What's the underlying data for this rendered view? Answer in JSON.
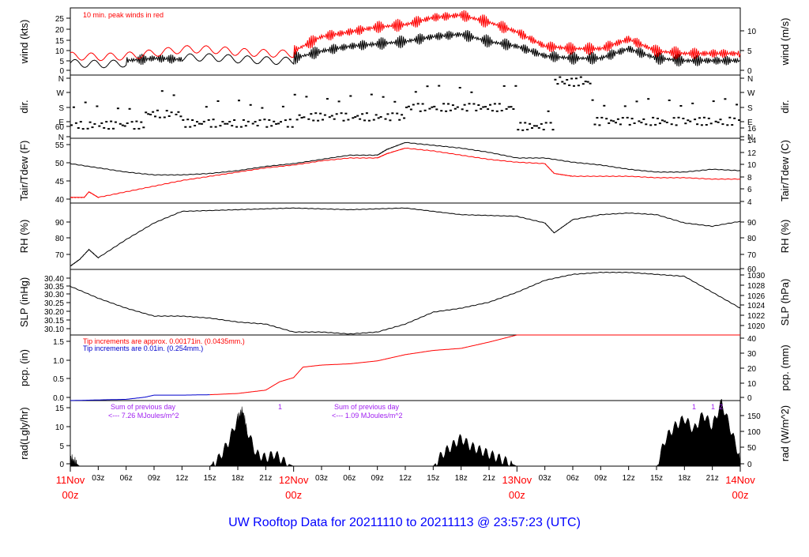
{
  "title": "UW Rooftop Data for 20211110  to  20211113 @ 23:57:23  (UTC)",
  "colors": {
    "primary": "#000000",
    "red": "#ff0000",
    "blue": "#0000cc",
    "purple": "#a020f0",
    "title": "#0000ff"
  },
  "x_axis": {
    "hour_ticks": [
      "03z",
      "06z",
      "09z",
      "12z",
      "15z",
      "18z",
      "21z",
      "03z",
      "06z",
      "09z",
      "12z",
      "15z",
      "18z",
      "21z",
      "03z",
      "06z",
      "09z",
      "12z",
      "15z",
      "18z",
      "21z"
    ],
    "day_labels": [
      {
        "day": "11Nov",
        "hour": "00z"
      },
      {
        "day": "12Nov",
        "hour": "00z"
      },
      {
        "day": "13Nov",
        "hour": "00z"
      },
      {
        "day": "14Nov",
        "hour": "00z"
      }
    ]
  },
  "chart_data": [
    {
      "type": "line",
      "panel": "wind",
      "ylabel_left": "wind (kts)",
      "ylabel_right": "wind (m/s)",
      "ylim": [
        0,
        28
      ],
      "left_ticks": [
        "0",
        "5",
        "10",
        "15",
        "20",
        "25"
      ],
      "right_ticks": [
        "0",
        "5",
        "10"
      ],
      "annotation": "10 min. peak winds in red",
      "series": [
        {
          "color": "#000000",
          "x": [
            0,
            6,
            9,
            12,
            18,
            24,
            27,
            30,
            33,
            36,
            39,
            42,
            45,
            48,
            51,
            54,
            57,
            60,
            63,
            66,
            69,
            72
          ],
          "values": [
            5,
            6,
            7,
            6.5,
            6,
            7,
            10,
            12,
            13,
            14,
            16,
            17,
            14,
            12,
            8,
            7,
            7,
            11,
            7,
            6,
            6,
            6
          ]
        },
        {
          "color": "#ff0000",
          "x": [
            0,
            6,
            12,
            18,
            24,
            27,
            30,
            33,
            36,
            39,
            42,
            45,
            48,
            51,
            54,
            57,
            60,
            63,
            66,
            69,
            72
          ],
          "values": [
            8,
            9,
            10,
            9,
            10,
            16,
            18,
            20,
            21,
            24,
            25,
            22,
            18,
            12,
            11,
            11,
            15,
            10,
            9,
            9,
            9
          ]
        }
      ]
    },
    {
      "type": "scatter",
      "panel": "dir",
      "ylabel_left": "dir.",
      "ylabel_right": "dir.",
      "left_ticks": [
        "N",
        "E",
        "S",
        "W",
        "N"
      ],
      "right_ticks": [
        "N",
        "E",
        "S",
        "W",
        "N"
      ]
    },
    {
      "type": "line",
      "panel": "temp",
      "ylabel_left": "Tair/Tdew (F)",
      "ylabel_right": "Tair/Tdew (C)",
      "ylim": [
        38,
        61
      ],
      "left_ticks": [
        "40",
        "45",
        "50",
        "55",
        "60"
      ],
      "right_ticks": [
        "4",
        "6",
        "8",
        "10",
        "12",
        "14",
        "16"
      ],
      "series": [
        {
          "color": "#000000",
          "x": [
            0,
            3,
            6,
            9,
            12,
            15,
            18,
            21,
            24,
            27,
            30,
            33,
            34,
            36,
            39,
            42,
            45,
            48,
            51,
            54,
            57,
            60,
            63,
            66,
            69,
            72
          ],
          "values": [
            52,
            50.5,
            49,
            48,
            48,
            48.5,
            49.5,
            51,
            52,
            53.5,
            55,
            55,
            57,
            59.5,
            58.5,
            57.5,
            56,
            54,
            54,
            52.5,
            51.5,
            50,
            49,
            49,
            50,
            49.5
          ]
        },
        {
          "color": "#ff0000",
          "x": [
            0,
            1.5,
            2,
            3,
            6,
            9,
            12,
            15,
            18,
            21,
            24,
            27,
            30,
            33,
            34,
            36,
            39,
            42,
            45,
            48,
            51,
            52,
            54,
            57,
            60,
            63,
            66,
            69,
            72
          ],
          "values": [
            40,
            40,
            42,
            40,
            42,
            44,
            46,
            47.5,
            49,
            50.5,
            51.5,
            53,
            54,
            54,
            55.5,
            57.5,
            56.5,
            55,
            53.5,
            52.5,
            52,
            48.5,
            47.5,
            47.5,
            47.5,
            47,
            47,
            46.5,
            46.5
          ]
        }
      ]
    },
    {
      "type": "line",
      "panel": "rh",
      "ylabel_left": "RH (%)",
      "ylabel_right": "RH (%)",
      "ylim": [
        60,
        100
      ],
      "left_ticks": [
        "70",
        "80",
        "90"
      ],
      "right_ticks": [
        "60",
        "70",
        "80",
        "90"
      ],
      "series": [
        {
          "color": "#000000",
          "x": [
            0,
            1,
            2,
            3,
            6,
            9,
            12,
            18,
            24,
            30,
            36,
            42,
            48,
            51,
            52,
            54,
            57,
            60,
            63,
            66,
            69,
            72
          ],
          "values": [
            62,
            66,
            72,
            67,
            78,
            88,
            95,
            96,
            97,
            96,
            97,
            93,
            92,
            88,
            82,
            90,
            93,
            94,
            93,
            88,
            86,
            89
          ]
        }
      ]
    },
    {
      "type": "line",
      "panel": "slp",
      "ylabel_left": "SLP (inHg)",
      "ylabel_right": "SLP (hPa)",
      "ylim": [
        30.085,
        30.415
      ],
      "left_ticks": [
        "30.10",
        "30.15",
        "30.20",
        "30.25",
        "30.30",
        "30.35",
        "30.40"
      ],
      "right_ticks": [
        "1020",
        "1022",
        "1024",
        "1026",
        "1028",
        "1030"
      ],
      "series": [
        {
          "color": "#000000",
          "x": [
            0,
            3,
            6,
            9,
            12,
            15,
            18,
            21,
            24,
            27,
            30,
            33,
            36,
            39,
            42,
            45,
            48,
            51,
            54,
            57,
            60,
            63,
            66,
            69,
            72
          ],
          "values": [
            30.33,
            30.27,
            30.22,
            30.18,
            30.18,
            30.17,
            30.15,
            30.14,
            30.1,
            30.1,
            30.09,
            30.1,
            30.14,
            30.2,
            30.22,
            30.25,
            30.3,
            30.36,
            30.39,
            30.4,
            30.4,
            30.39,
            30.38,
            30.3,
            30.22
          ]
        }
      ]
    },
    {
      "type": "line",
      "panel": "pcp",
      "ylabel_left": "pcp. (in)",
      "ylabel_right": "pcp. (mm)",
      "ylim": [
        0,
        1.57
      ],
      "left_ticks": [
        "0.0",
        "0.5",
        "1.0",
        "1.5"
      ],
      "right_ticks": [
        "0",
        "10",
        "20",
        "30",
        "40"
      ],
      "annotations": [
        "Tip increments are approx. 0.00171in. (0.0435mm.)",
        "Tip increments are 0.01in. (0.254mm.)"
      ],
      "series": [
        {
          "color": "#0000cc",
          "x": [
            0,
            6,
            8,
            9,
            12,
            15
          ],
          "values": [
            0,
            0.03,
            0.08,
            0.13,
            0.13,
            0.14
          ]
        },
        {
          "color": "#ff0000",
          "x": [
            15,
            18,
            21,
            22.5,
            24,
            25,
            27,
            30,
            33,
            36,
            39,
            42,
            45,
            48,
            51,
            54,
            57,
            60,
            63,
            66,
            69,
            72
          ],
          "values": [
            0.14,
            0.17,
            0.25,
            0.45,
            0.55,
            0.8,
            0.85,
            0.88,
            0.95,
            1.1,
            1.2,
            1.25,
            1.4,
            1.57,
            1.57,
            1.57,
            1.57,
            1.57,
            1.57,
            1.57,
            1.57,
            1.57
          ]
        }
      ]
    },
    {
      "type": "area",
      "panel": "rad",
      "ylabel_left": "rad(Lgly/hr)",
      "ylabel_right": "rad (W/m^2)",
      "ylim": [
        0,
        16.5
      ],
      "left_ticks": [
        "0",
        "5",
        "10",
        "15"
      ],
      "right_ticks": [
        "0",
        "50",
        "100",
        "150"
      ],
      "annotations": [
        "Sum of previous day",
        "<--- 7.26 MJoules/m^2",
        "Sum of previous day",
        "<--- 1.09 MJoules/m^2"
      ],
      "markers": [
        "1",
        "1",
        "1",
        "2"
      ],
      "series": [
        {
          "color": "#000000",
          "x": [
            0,
            0.5,
            1,
            15,
            16,
            17,
            18,
            18.5,
            19,
            20,
            21,
            22,
            23,
            24,
            39,
            40,
            41,
            42,
            43,
            44,
            45,
            46,
            47,
            48,
            63,
            64,
            65,
            66,
            67,
            68,
            69,
            70,
            71,
            72
          ],
          "values": [
            2,
            1,
            0,
            0,
            2,
            6,
            12,
            14,
            9,
            3,
            2,
            3,
            1,
            0,
            0,
            3,
            5,
            7,
            5,
            4,
            3,
            2,
            1,
            0,
            0,
            7,
            10,
            12,
            9,
            13,
            10,
            16,
            9,
            2
          ]
        }
      ]
    }
  ]
}
